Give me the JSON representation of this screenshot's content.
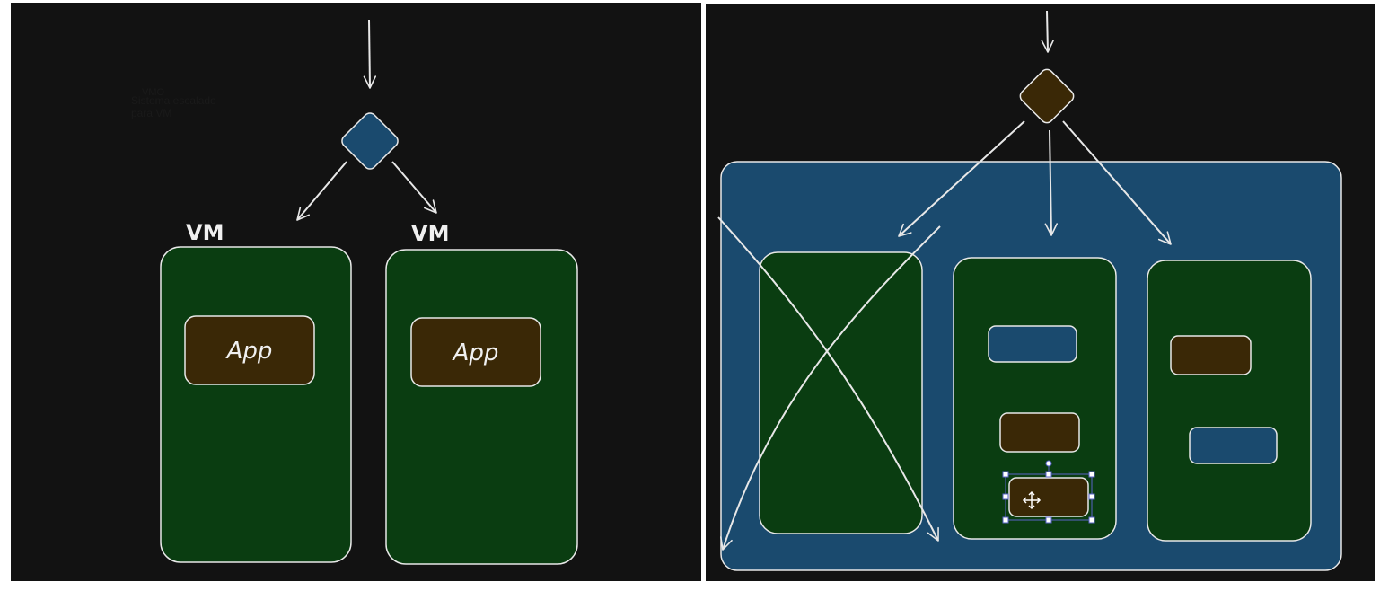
{
  "left_panel": {
    "overlay_label_top": "VMO",
    "overlay_label": "Sistema escalado\npara VM",
    "vm_labels": [
      "VM",
      "VM"
    ],
    "app_labels": [
      "App",
      "App"
    ]
  },
  "colors": {
    "canvas": "#121212",
    "stroke": "#e8e8e8",
    "vm_green": "#0a3d11",
    "app_brown": "#3a2806",
    "lb_blue": "#1a4a6e",
    "selection": "#5a64c8"
  },
  "icons": {
    "move_handle": "move-icon"
  }
}
